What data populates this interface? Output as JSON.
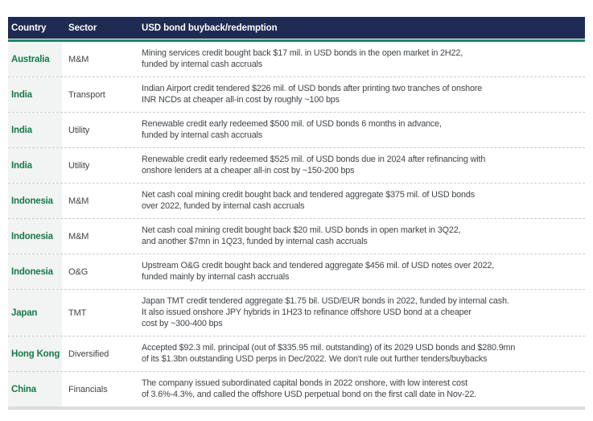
{
  "colors": {
    "header_bg": "#1F2B52",
    "header_text": "#FFFFFF",
    "accent_green": "#2B8262",
    "country_green": "#17794A",
    "country_col_bg": "#F2F4F3",
    "body_text": "#404448",
    "dashed_border": "#C8CCCB",
    "bottom_bar": "#D9DDDC"
  },
  "table": {
    "columns": [
      "Country",
      "Sector",
      "USD bond buyback/redemption"
    ],
    "rows": [
      {
        "country": "Australia",
        "sector": "M&M",
        "description": "Mining services credit bought back $17 mil. in USD bonds in the open market in 2H22,\nfunded by internal cash accruals"
      },
      {
        "country": "India",
        "sector": "Transport",
        "description": "Indian Airport credit tendered $226 mil. of USD bonds after printing two tranches of onshore\nINR NCDs at cheaper all-in cost by roughly ~100 bps"
      },
      {
        "country": "India",
        "sector": "Utility",
        "description": "Renewable credit early redeemed $500 mil. of USD bonds 6 months in advance,\nfunded by internal cash accruals"
      },
      {
        "country": "India",
        "sector": "Utility",
        "description": "Renewable credit early redeemed $525 mil. of USD bonds due in 2024 after refinancing with\nonshore lenders at a cheaper all-in cost by ~150-200 bps"
      },
      {
        "country": "Indonesia",
        "sector": "M&M",
        "description": "Net cash coal mining credit bought back and tendered aggregate $375 mil. of USD bonds\nover 2022, funded by internal cash accruals"
      },
      {
        "country": "Indonesia",
        "sector": "M&M",
        "description": "Net cash coal mining credit bought back $20 mil. USD bonds in open market in 3Q22,\nand another $7mn in 1Q23, funded by internal cash accruals"
      },
      {
        "country": "Indonesia",
        "sector": "O&G",
        "description": "Upstream O&G credit bought back and tendered aggregate $456 mil. of USD notes over 2022,\nfunded mainly by internal cash accruals"
      },
      {
        "country": "Japan",
        "sector": "TMT",
        "description": "Japan TMT credit tendered aggregate $1.75 bil. USD/EUR bonds in 2022, funded by internal cash.\nIt also issued onshore JPY hybrids in 1H23 to refinance offshore USD bond at a cheaper\ncost by ~300-400 bps"
      },
      {
        "country": "Hong Kong",
        "sector": "Diversified",
        "description": "Accepted $92.3 mil. principal (out of $335.95 mil. outstanding) of its 2029 USD bonds and $280.9mn\nof its $1.3bn outstanding USD perps in Dec/2022. We don't rule out further tenders/buybacks"
      },
      {
        "country": "China",
        "sector": "Financials",
        "description": "The company issued subordinated capital bonds in 2022 onshore, with low interest cost\nof 3.6%-4.3%, and called the offshore USD perpetual bond on the first call date in Nov-22."
      }
    ]
  }
}
